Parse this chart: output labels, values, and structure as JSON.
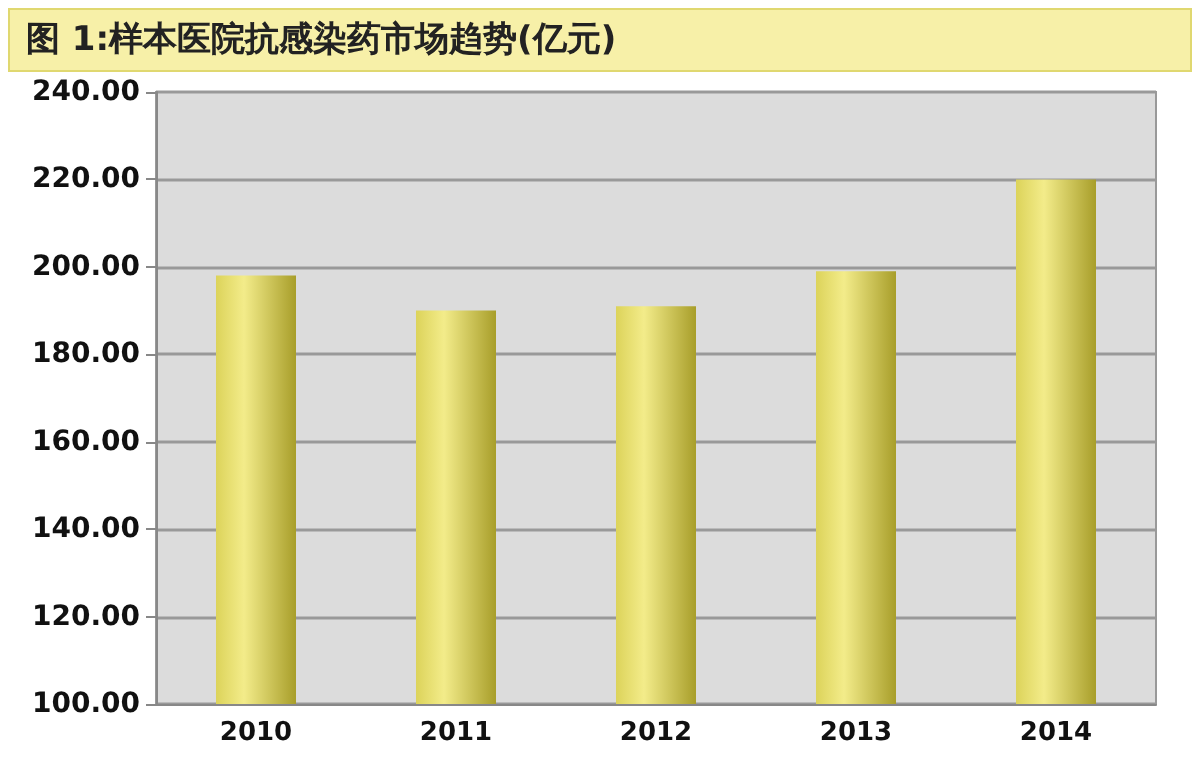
{
  "chart_data": {
    "type": "bar",
    "title": "图 1:样本医院抗感染药市场趋势(亿元)",
    "categories": [
      "2010",
      "2011",
      "2012",
      "2013",
      "2014"
    ],
    "values": [
      198,
      190,
      191,
      199,
      220
    ],
    "color": "#dcd35a",
    "ylim": [
      100,
      240
    ],
    "yticks": [
      {
        "value": 100,
        "label": "100.00"
      },
      {
        "value": 120,
        "label": "120.00"
      },
      {
        "value": 140,
        "label": "140.00"
      },
      {
        "value": 160,
        "label": "160.00"
      },
      {
        "value": 180,
        "label": "180.00"
      },
      {
        "value": 200,
        "label": "200.00"
      },
      {
        "value": 220,
        "label": "220.00"
      },
      {
        "value": 240,
        "label": "240.00"
      }
    ],
    "grid": "y"
  }
}
